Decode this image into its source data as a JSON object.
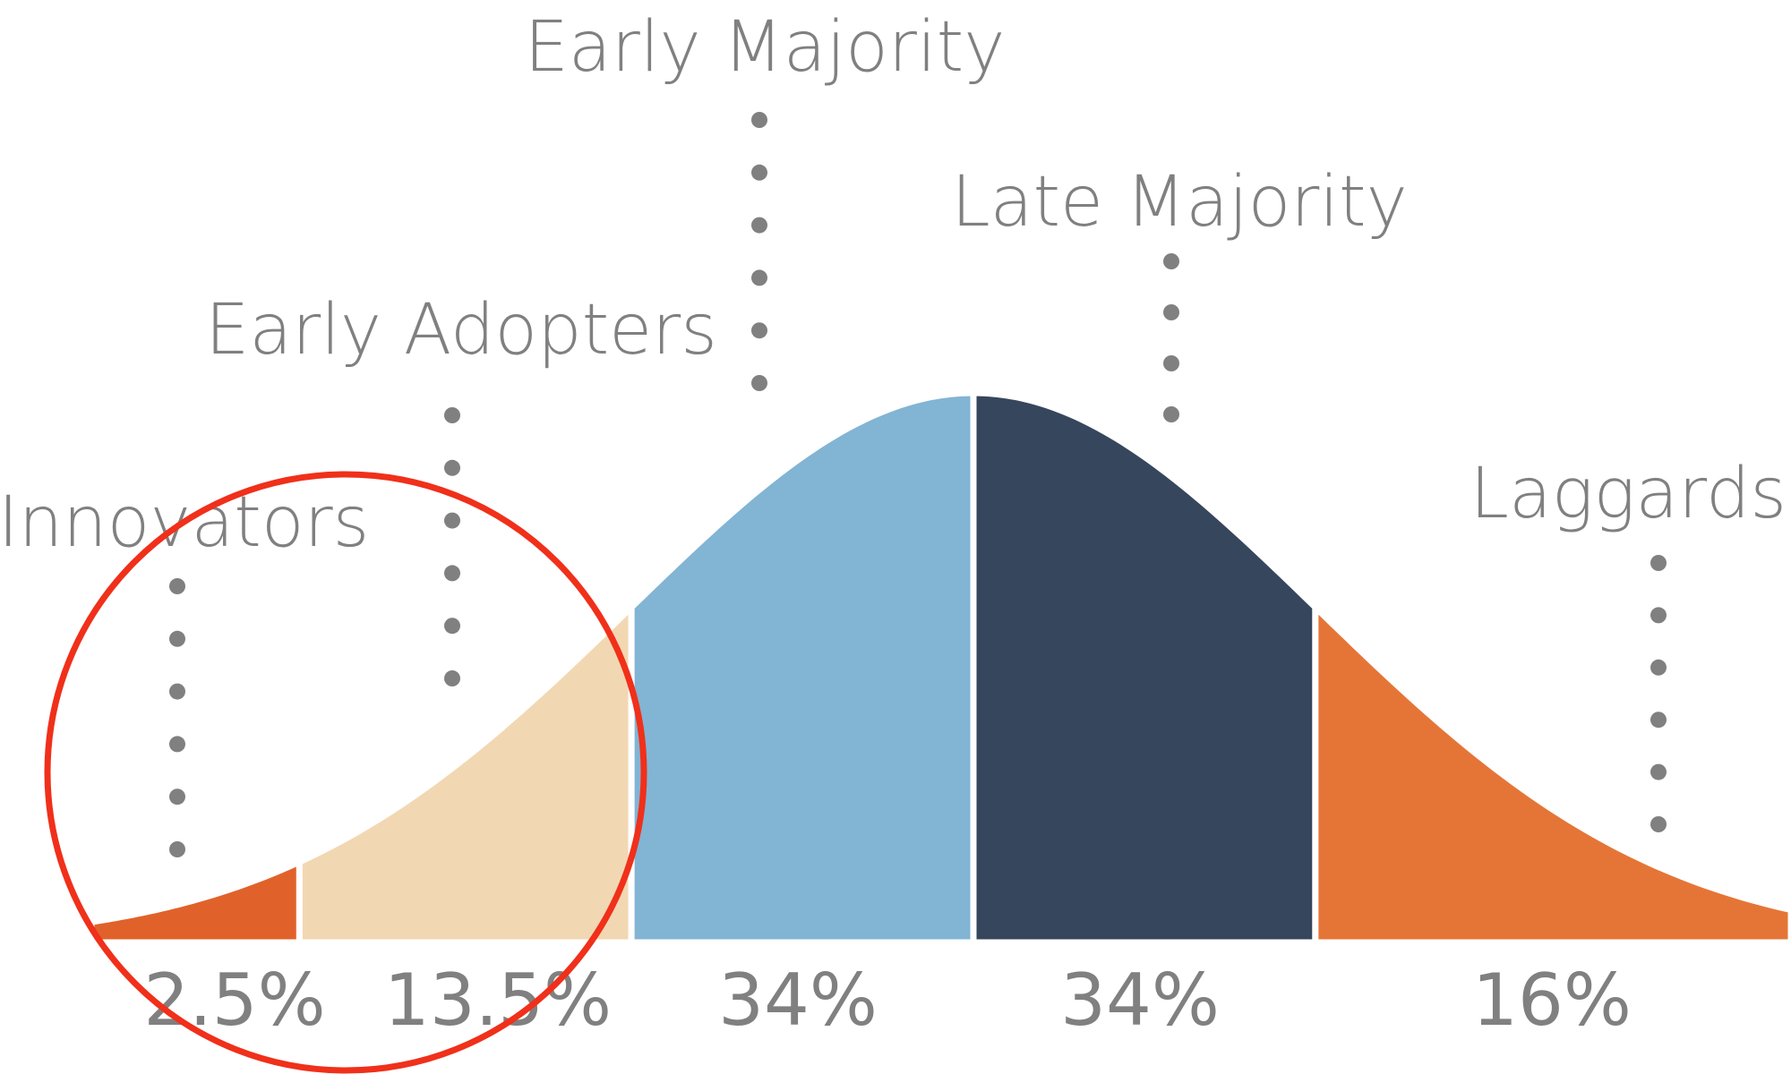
{
  "chart_data": {
    "type": "bell",
    "categories": [
      "Innovators",
      "Early Adopters",
      "Early Majority",
      "Late Majority",
      "Laggards"
    ],
    "values": [
      2.5,
      13.5,
      34,
      34,
      16
    ],
    "value_labels": [
      "2.5%",
      "13.5%",
      "34%",
      "34%",
      "16%"
    ],
    "colors": [
      "#e0622a",
      "#f2d7b3",
      "#82b4d4",
      "#36465c",
      "#e57537"
    ]
  }
}
